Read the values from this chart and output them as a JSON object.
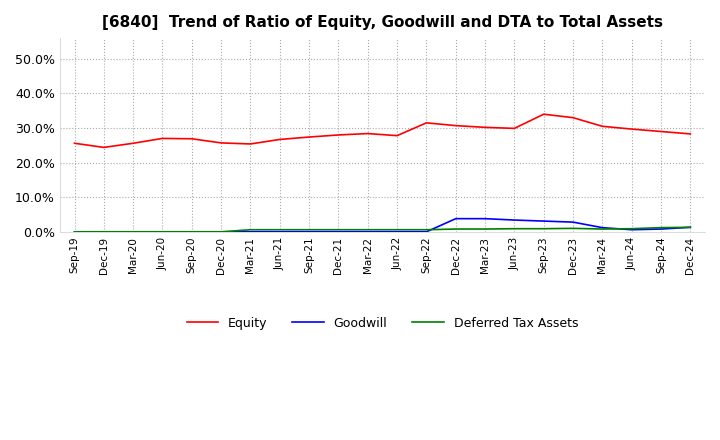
{
  "title": "[6840]  Trend of Ratio of Equity, Goodwill and DTA to Total Assets",
  "title_fontsize": 11,
  "ylim": [
    0.0,
    0.56
  ],
  "yticks": [
    0.0,
    0.1,
    0.2,
    0.3,
    0.4,
    0.5
  ],
  "ytick_labels": [
    "0.0%",
    "10.0%",
    "20.0%",
    "30.0%",
    "40.0%",
    "50.0%"
  ],
  "background_color": "#ffffff",
  "grid_color": "#aaaaaa",
  "x_labels": [
    "Sep-19",
    "Dec-19",
    "Mar-20",
    "Jun-20",
    "Sep-20",
    "Dec-20",
    "Mar-21",
    "Jun-21",
    "Sep-21",
    "Dec-21",
    "Mar-22",
    "Jun-22",
    "Sep-22",
    "Dec-22",
    "Mar-23",
    "Jun-23",
    "Sep-23",
    "Dec-23",
    "Mar-24",
    "Jun-24",
    "Sep-24",
    "Dec-24"
  ],
  "equity": [
    0.256,
    0.244,
    0.256,
    0.27,
    0.269,
    0.257,
    0.254,
    0.267,
    0.274,
    0.28,
    0.284,
    0.278,
    0.315,
    0.307,
    0.302,
    0.299,
    0.34,
    0.33,
    0.305,
    0.297,
    0.29,
    0.283
  ],
  "goodwill": [
    0.0,
    0.0,
    0.0,
    0.0,
    0.0,
    0.0,
    0.0,
    0.0,
    0.0,
    0.0,
    0.0,
    0.0,
    0.0,
    0.038,
    0.038,
    0.034,
    0.031,
    0.028,
    0.012,
    0.006,
    0.008,
    0.013
  ],
  "dta": [
    0.0,
    0.0,
    0.0,
    0.0,
    0.0,
    0.0,
    0.006,
    0.006,
    0.006,
    0.006,
    0.006,
    0.006,
    0.006,
    0.008,
    0.008,
    0.009,
    0.009,
    0.01,
    0.008,
    0.009,
    0.012,
    0.013
  ],
  "equity_color": "#ff0000",
  "goodwill_color": "#0000ff",
  "dta_color": "#008000",
  "line_width": 1.2
}
